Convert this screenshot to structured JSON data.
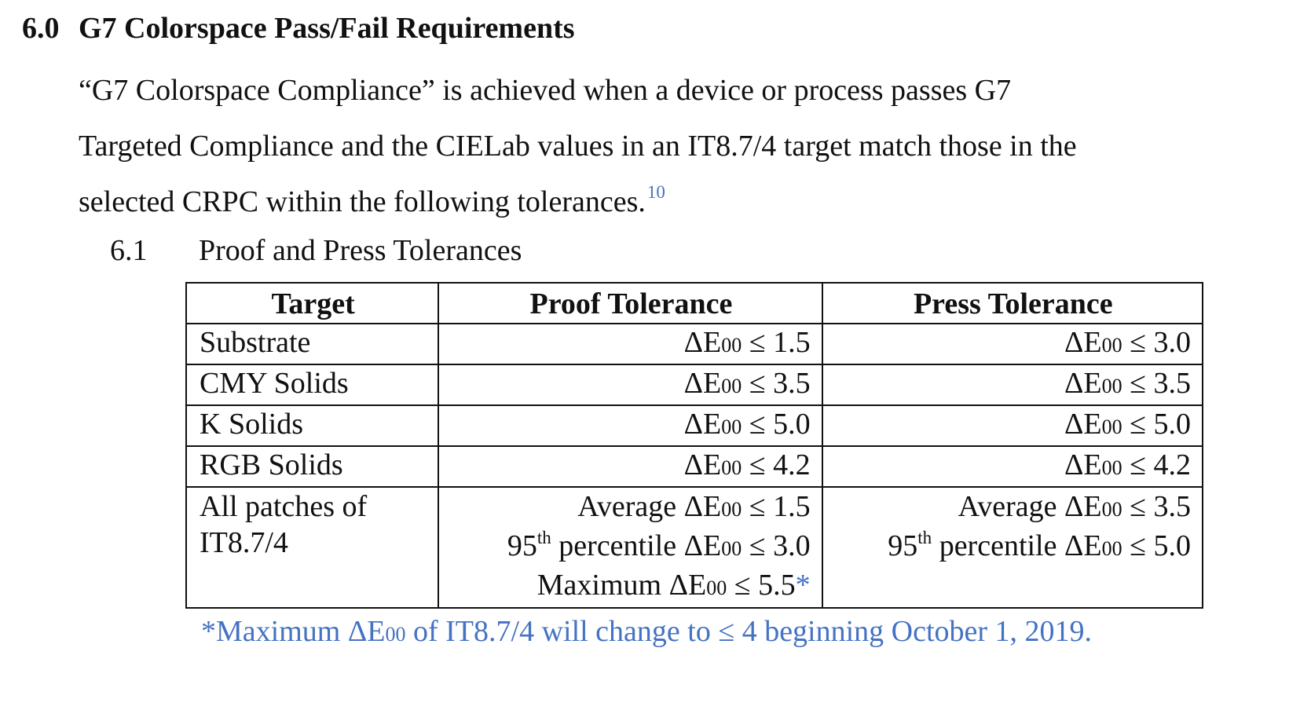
{
  "section": {
    "number": "6.0",
    "title": "G7 Colorspace Pass/Fail Requirements"
  },
  "paragraph": {
    "lines": [
      "“G7 Colorspace Compliance” is achieved when a device or process passes G7",
      "Targeted Compliance and the CIELab values in an IT8.7/4 target match those in the",
      "selected CRPC within the following tolerances."
    ],
    "footnote_ref": "10"
  },
  "subsection": {
    "number": "6.1",
    "title": "Proof and Press Tolerances"
  },
  "table": {
    "headers": [
      "Target",
      "Proof Tolerance",
      "Press Tolerance"
    ],
    "rows": [
      {
        "target": "Substrate",
        "proof": "1.5",
        "press": "3.0"
      },
      {
        "target": "CMY Solids",
        "proof": "3.5",
        "press": "3.5"
      },
      {
        "target": "K Solids",
        "proof": "5.0",
        "press": "5.0"
      },
      {
        "target": "RGB Solids",
        "proof": "4.2",
        "press": "4.2"
      }
    ],
    "symbols": {
      "delta_e": "ΔE",
      "subscript": "00",
      "le": "≤"
    },
    "all_patches": {
      "target_line1": "All patches of",
      "target_line2": "IT8.7/4",
      "average_label": "Average",
      "percentile_number": "95",
      "percentile_suffix": "th",
      "percentile_label": "percentile",
      "maximum_label": "Maximum",
      "proof_average": "1.5",
      "proof_percentile": "3.0",
      "proof_maximum": "5.5",
      "proof_maximum_mark": "*",
      "press_average": "3.5",
      "press_percentile": "5.0"
    }
  },
  "footnote": {
    "prefix": "*Maximum ΔE",
    "subscript": "00",
    "suffix": " of IT8.7/4 will change to ≤ 4 beginning October 1, 2019."
  },
  "colors": {
    "text": "#111111",
    "accent_blue": "#4472c4"
  }
}
